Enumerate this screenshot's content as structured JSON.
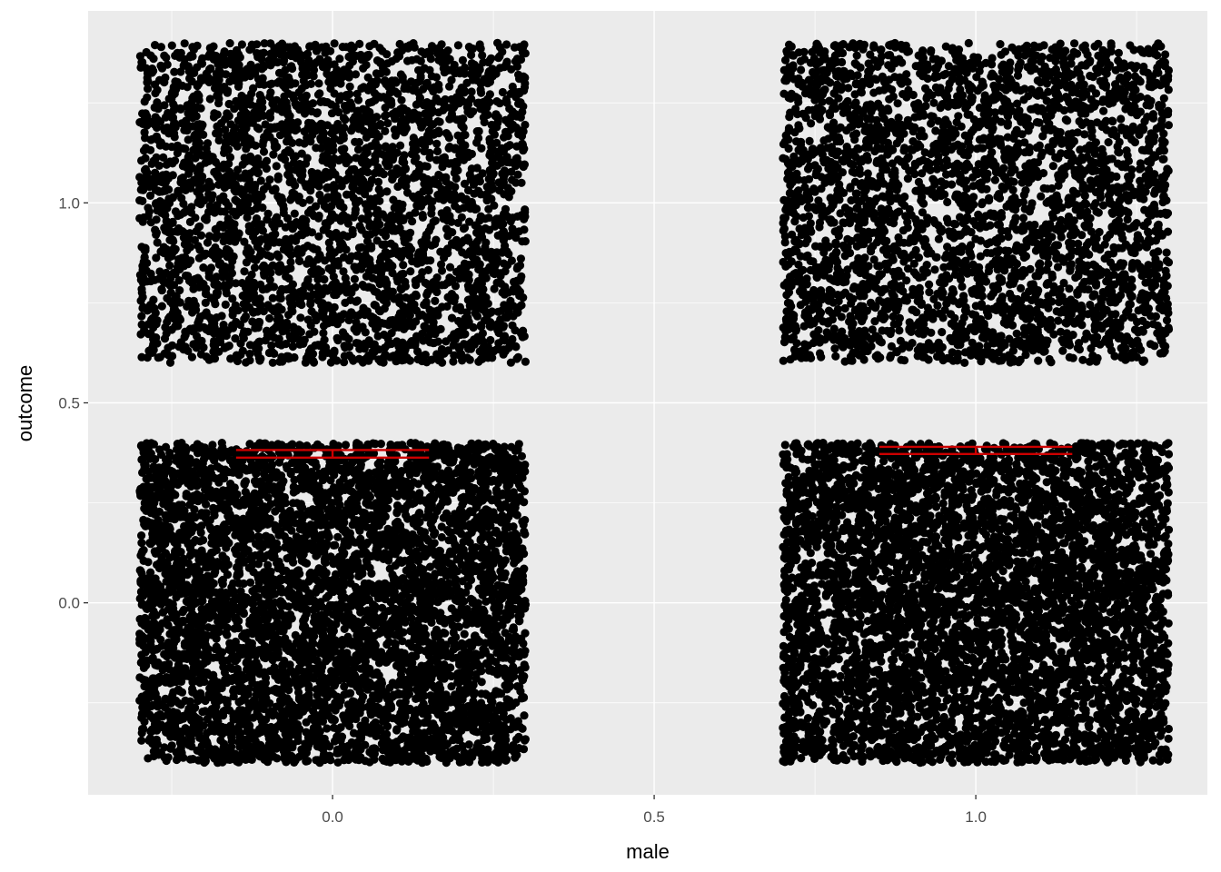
{
  "chart_data": {
    "type": "scatter",
    "title": "",
    "xlabel": "male",
    "ylabel": "outcome",
    "xlim": [
      -0.38,
      1.36
    ],
    "ylim": [
      -0.48,
      1.48
    ],
    "x_ticks": [
      {
        "value": 0,
        "label": "0.0"
      },
      {
        "value": 0.5,
        "label": "0.5"
      },
      {
        "value": 1,
        "label": "1.0"
      }
    ],
    "y_ticks": [
      {
        "value": 0,
        "label": "0.0"
      },
      {
        "value": 0.5,
        "label": "0.5"
      },
      {
        "value": 1,
        "label": "1.0"
      }
    ],
    "grid": true,
    "legend": "none",
    "colors": {
      "panel": "#ebebeb",
      "grid_major": "#ffffff",
      "points": "#000000",
      "error_bars": "#cc0000"
    },
    "jittered_clusters": [
      {
        "male": 0,
        "outcome": 1,
        "x_range": [
          -0.3,
          0.3
        ],
        "y_range": [
          0.6,
          1.4
        ],
        "density": "medium"
      },
      {
        "male": 1,
        "outcome": 1,
        "x_range": [
          0.7,
          1.3
        ],
        "y_range": [
          0.6,
          1.4
        ],
        "density": "medium"
      },
      {
        "male": 0,
        "outcome": 0,
        "x_range": [
          -0.3,
          0.3
        ],
        "y_range": [
          -0.4,
          0.4
        ],
        "density": "high"
      },
      {
        "male": 1,
        "outcome": 0,
        "x_range": [
          0.7,
          1.3
        ],
        "y_range": [
          -0.4,
          0.4
        ],
        "density": "high"
      }
    ],
    "error_bars": [
      {
        "male": 0,
        "mean": 0.372,
        "lower": 0.363,
        "upper": 0.382
      },
      {
        "male": 1,
        "mean": 0.381,
        "lower": 0.372,
        "upper": 0.39
      }
    ]
  }
}
